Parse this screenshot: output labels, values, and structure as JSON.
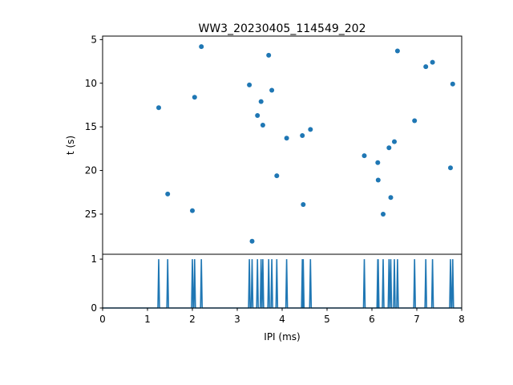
{
  "chart_data": [
    {
      "type": "scatter",
      "title": "WW3_20230405_114549_202",
      "xlabel": "",
      "ylabel": "t (s)",
      "xlim": [
        0,
        8
      ],
      "ylim": [
        29.6,
        4.6
      ],
      "y_inverted": true,
      "yticks": [
        5,
        10,
        15,
        20,
        25
      ],
      "color": "#1f77b4",
      "points": [
        {
          "x": 1.25,
          "y": 12.8
        },
        {
          "x": 1.45,
          "y": 22.7
        },
        {
          "x": 2.0,
          "y": 24.6
        },
        {
          "x": 2.05,
          "y": 11.6
        },
        {
          "x": 2.2,
          "y": 5.8
        },
        {
          "x": 3.27,
          "y": 10.2
        },
        {
          "x": 3.33,
          "y": 28.1
        },
        {
          "x": 3.45,
          "y": 13.7
        },
        {
          "x": 3.53,
          "y": 12.1
        },
        {
          "x": 3.57,
          "y": 14.8
        },
        {
          "x": 3.7,
          "y": 6.8
        },
        {
          "x": 3.77,
          "y": 10.8
        },
        {
          "x": 3.88,
          "y": 20.6
        },
        {
          "x": 4.1,
          "y": 16.3
        },
        {
          "x": 4.45,
          "y": 16.0
        },
        {
          "x": 4.47,
          "y": 23.9
        },
        {
          "x": 4.63,
          "y": 15.3
        },
        {
          "x": 5.83,
          "y": 18.3
        },
        {
          "x": 6.13,
          "y": 19.1
        },
        {
          "x": 6.14,
          "y": 21.1
        },
        {
          "x": 6.25,
          "y": 25.0
        },
        {
          "x": 6.38,
          "y": 17.4
        },
        {
          "x": 6.42,
          "y": 23.1
        },
        {
          "x": 6.5,
          "y": 16.7
        },
        {
          "x": 6.57,
          "y": 6.3
        },
        {
          "x": 6.95,
          "y": 14.3
        },
        {
          "x": 7.2,
          "y": 8.1
        },
        {
          "x": 7.35,
          "y": 7.6
        },
        {
          "x": 7.75,
          "y": 19.7
        },
        {
          "x": 7.8,
          "y": 10.1
        }
      ]
    },
    {
      "type": "line",
      "xlabel": "IPI (ms)",
      "ylabel": "",
      "xlim": [
        0,
        8
      ],
      "ylim": [
        0,
        1.1
      ],
      "xticks": [
        0,
        1,
        2,
        3,
        4,
        5,
        6,
        7,
        8
      ],
      "yticks": [
        0,
        1
      ],
      "color": "#1f77b4",
      "spikes_x": [
        1.25,
        1.45,
        2.0,
        2.05,
        2.2,
        3.27,
        3.33,
        3.45,
        3.53,
        3.57,
        3.7,
        3.77,
        3.88,
        4.1,
        4.45,
        4.47,
        4.63,
        5.83,
        6.13,
        6.14,
        6.25,
        6.38,
        6.42,
        6.5,
        6.57,
        6.95,
        7.2,
        7.35,
        7.75,
        7.8
      ]
    }
  ]
}
